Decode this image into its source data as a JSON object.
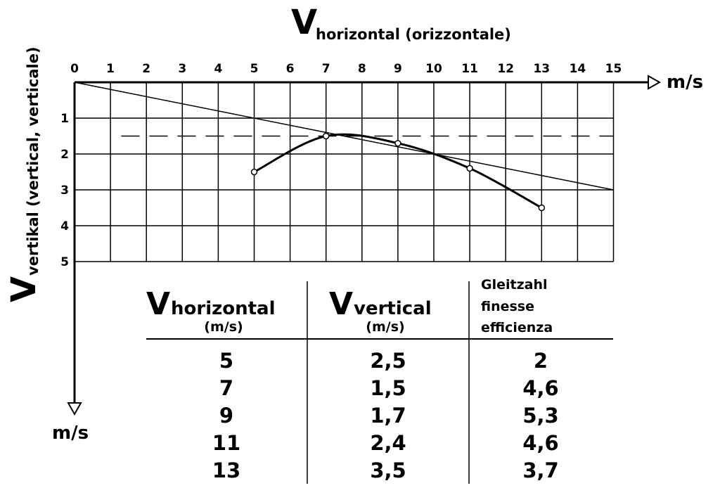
{
  "chart_data": {
    "type": "line",
    "title_main": "V",
    "title_sub": "horizontal (orizzontale)",
    "x_unit": "m/s",
    "y_title_main": "V",
    "y_title_sub": "vertikal (vertical, verticale)",
    "y_unit": "m/s",
    "x_ticks": [
      "0",
      "1",
      "2",
      "3",
      "4",
      "5",
      "6",
      "7",
      "8",
      "9",
      "10",
      "11",
      "12",
      "13",
      "14",
      "15"
    ],
    "y_ticks": [
      "1",
      "2",
      "3",
      "4",
      "5"
    ],
    "xlim": [
      0,
      15
    ],
    "ylim": [
      0,
      5
    ],
    "y_axis_direction": "downward",
    "grid": true,
    "series": [
      {
        "x": [
          5,
          7,
          9,
          11,
          13
        ],
        "y": [
          2.5,
          1.5,
          1.7,
          2.4,
          3.5
        ],
        "markers": "open-circle"
      }
    ],
    "tangent_line": {
      "x": [
        0,
        15
      ],
      "y": [
        0,
        3
      ]
    },
    "dashed_reference": {
      "y": 1.5
    }
  },
  "table": {
    "headers": [
      {
        "main": "V",
        "sub": "horizontal",
        "unit": "(m/s)"
      },
      {
        "main": "V",
        "sub": "vertical",
        "unit": "(m/s)"
      },
      {
        "lines": [
          "Gleitzahl",
          "finesse",
          "efficienza"
        ]
      }
    ],
    "rows": [
      [
        "5",
        "2,5",
        "2"
      ],
      [
        "7",
        "1,5",
        "4,6"
      ],
      [
        "9",
        "1,7",
        "5,3"
      ],
      [
        "11",
        "2,4",
        "4,6"
      ],
      [
        "13",
        "3,5",
        "3,7"
      ]
    ]
  }
}
